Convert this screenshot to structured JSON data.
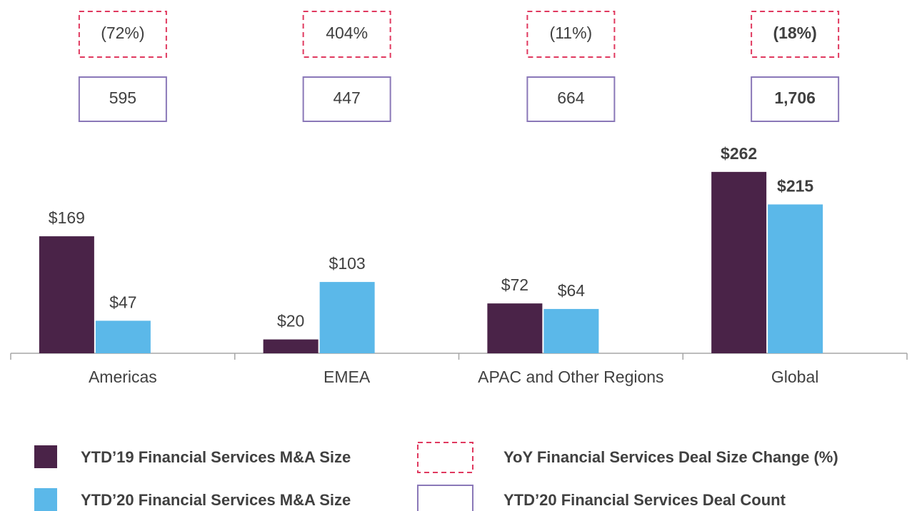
{
  "chart_data": {
    "type": "bar",
    "categories": [
      "Americas",
      "EMEA",
      "APAC and Other Regions",
      "Global"
    ],
    "ylim": [
      0,
      300
    ],
    "series": [
      {
        "name": "YTD’19 Financial Services M&A Size",
        "color": "#4a2348",
        "values": [
          169,
          20,
          72,
          262
        ],
        "value_labels": [
          "$169",
          "$20",
          "$72",
          "$262"
        ]
      },
      {
        "name": "YTD’20 Financial Services M&A Size",
        "color": "#5bb8e9",
        "values": [
          47,
          103,
          64,
          215
        ],
        "value_labels": [
          "$47",
          "$103",
          "$64",
          "$215"
        ]
      }
    ],
    "boxes": [
      {
        "name": "YoY Financial Services Deal Size Change (%)",
        "color": "#e0395f",
        "dashed": true,
        "values": [
          -72,
          404,
          -11,
          -18
        ],
        "value_labels": [
          "(72%)",
          "404%",
          "(11%)",
          "(18%)"
        ]
      },
      {
        "name": "YTD’20 Financial Services Deal Count",
        "color": "#8a78b8",
        "dashed": false,
        "values": [
          595,
          447,
          664,
          1706
        ],
        "value_labels": [
          "595",
          "447",
          "664",
          "1,706"
        ]
      }
    ]
  }
}
